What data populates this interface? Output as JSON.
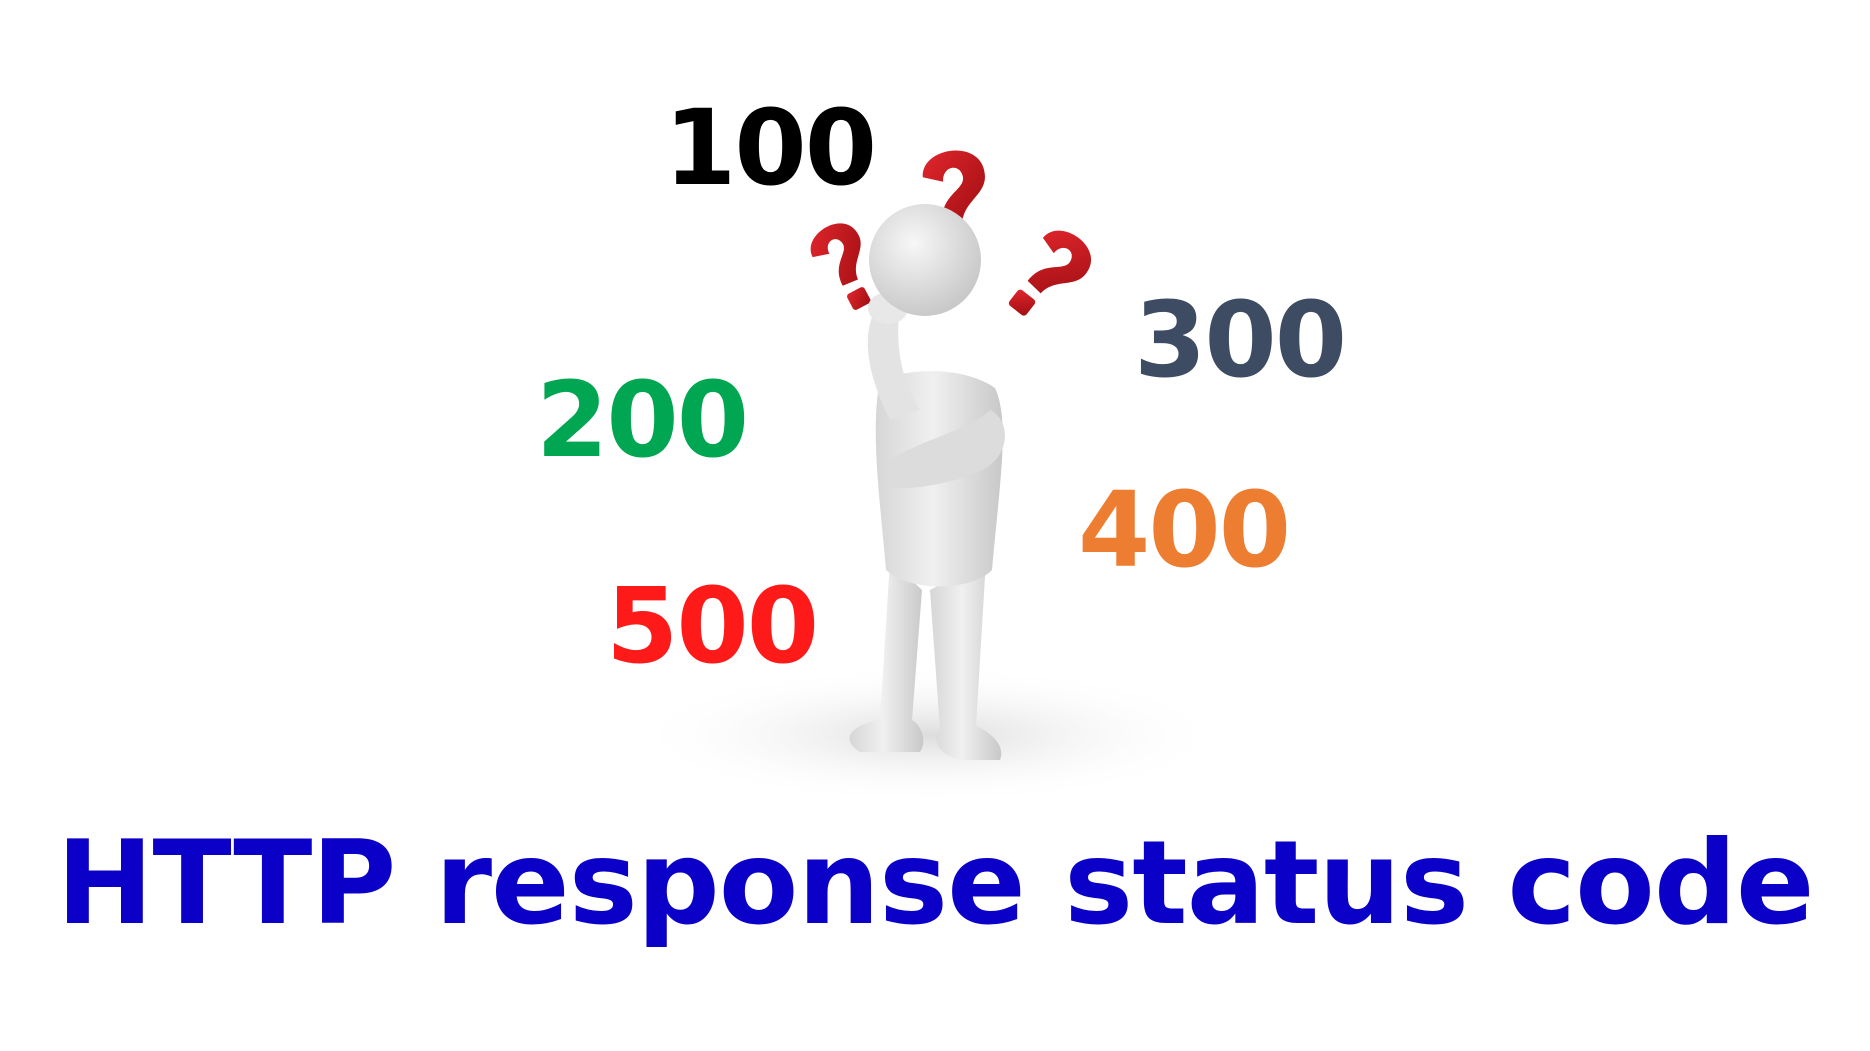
{
  "codes": {
    "c100": {
      "label": "100",
      "color": "#000000"
    },
    "c200": {
      "label": "200",
      "color": "#00a651"
    },
    "c300": {
      "label": "300",
      "color": "#3d4b63"
    },
    "c400": {
      "label": "400",
      "color": "#ed7d31"
    },
    "c500": {
      "label": "500",
      "color": "#ff1a1a"
    }
  },
  "title": {
    "text": "HTTP response status code",
    "color": "#0a00c8"
  },
  "illustration": {
    "icon": "thinking-person-icon",
    "question_mark_color": "#c4161c",
    "figure_color": "#e6e6e6"
  }
}
